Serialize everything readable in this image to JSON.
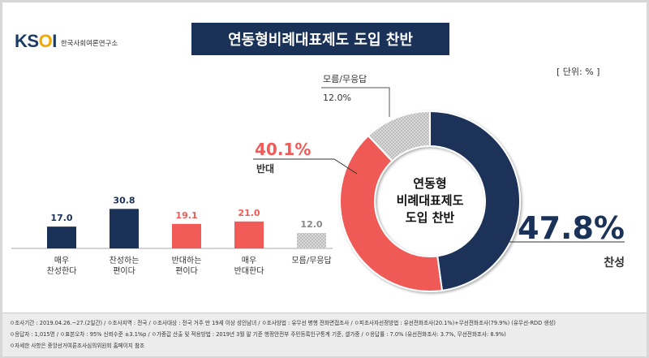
{
  "logo": {
    "mark": "KSOI",
    "subtitle": "한국사회여론연구소"
  },
  "title": "연동형비례대표제도 도입 찬반",
  "unit": "[ 단위: % ]",
  "colors": {
    "navy": "#1b3258",
    "red": "#f05a57",
    "gray": "#b0b0b0",
    "title_bg": "#1b3258"
  },
  "chart_data": [
    {
      "type": "bar",
      "categories": [
        "매우\n찬성한다",
        "찬성하는\n편이다",
        "반대하는\n편이다",
        "매우\n반대한다",
        "모름/무응답"
      ],
      "values": [
        17.0,
        30.8,
        19.1,
        21.0,
        12.0
      ],
      "value_labels": [
        "17.0",
        "30.8",
        "19.1",
        "21.0",
        "12.0"
      ],
      "colors": [
        "#1b3258",
        "#1b3258",
        "#f05a57",
        "#f05a57",
        "#b0b0b0"
      ]
    },
    {
      "type": "pie",
      "center_label": [
        "연동형",
        "비례대표제도",
        "도입 찬반"
      ],
      "slices": [
        {
          "label": "찬성",
          "value": 47.8,
          "value_label": "47.8%",
          "color": "#1b3258"
        },
        {
          "label": "반대",
          "value": 40.1,
          "value_label": "40.1%",
          "color": "#f05a57"
        },
        {
          "label": "모름/무응답",
          "value": 12.0,
          "value_label": "12.0%",
          "color": "#b0b0b0"
        }
      ]
    }
  ],
  "footer": {
    "line1": "ㅇ조사기간 : 2019.04.26.~27.(2일간) / ㅇ조사지역 : 전국 / ㅇ조사대상 : 전국 거주 만 19세 이상 성인남녀 / ㅇ조사방법 : 유무선 병행 전화면접조사 / ㅇ피조사자선정방법 : 유선전화조사(20.1%)+무선전화조사(79.9%) (유무선-RDD 생성)",
    "line2": "ㅇ응답자 : 1,015명 / ㅇ표본오차 : 95% 신뢰수준 ±3.1%p / ㅇ가중값 산출 및 적용방법 : 2019년 3월 말 기준 행정안전부 주민등록인구통계 기준, 셀가중 / ㅇ응답률 : 7.0% (유선전화조사: 3.7%, 무선전화조사: 8.9%)",
    "line3": "ㅇ자세한 사항은 중앙선거여론조사심의위원회 홈페이지 참조"
  }
}
